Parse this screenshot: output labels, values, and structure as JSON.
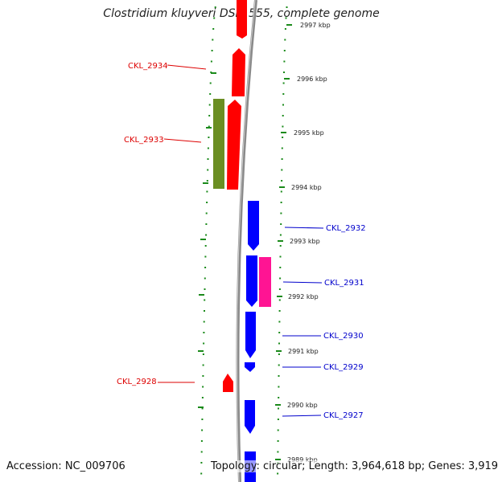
{
  "title": "Clostridium kluyveri DSM 555, complete genome",
  "footer": {
    "accession": "Accession: NC_009706",
    "topology": "Topology: circular; Length: 3,964,618 bp; Genes: 3,919"
  },
  "colors": {
    "backbone": "#8a8a8a",
    "ticks": "#1a8a1a",
    "plus_gene": "#ff0000",
    "minus_gene": "#0000ff",
    "olive_feature": "#6b8e23",
    "pink_feature": "#ff1493",
    "plus_label": "#dd0000",
    "minus_label": "#0000cc"
  },
  "kbp_ticks": [
    "2997 kbp",
    "2996 kbp",
    "2995 kbp",
    "2994 kbp",
    "2993 kbp",
    "2992 kbp",
    "2991 kbp",
    "2990 kbp",
    "2989 kbp"
  ],
  "gene_labels": {
    "left": [
      "CKL_2934",
      "CKL_2933",
      "CKL_2928"
    ],
    "right": [
      "CKL_2932",
      "CKL_2931",
      "CKL_2930",
      "CKL_2929",
      "CKL_2927"
    ]
  }
}
